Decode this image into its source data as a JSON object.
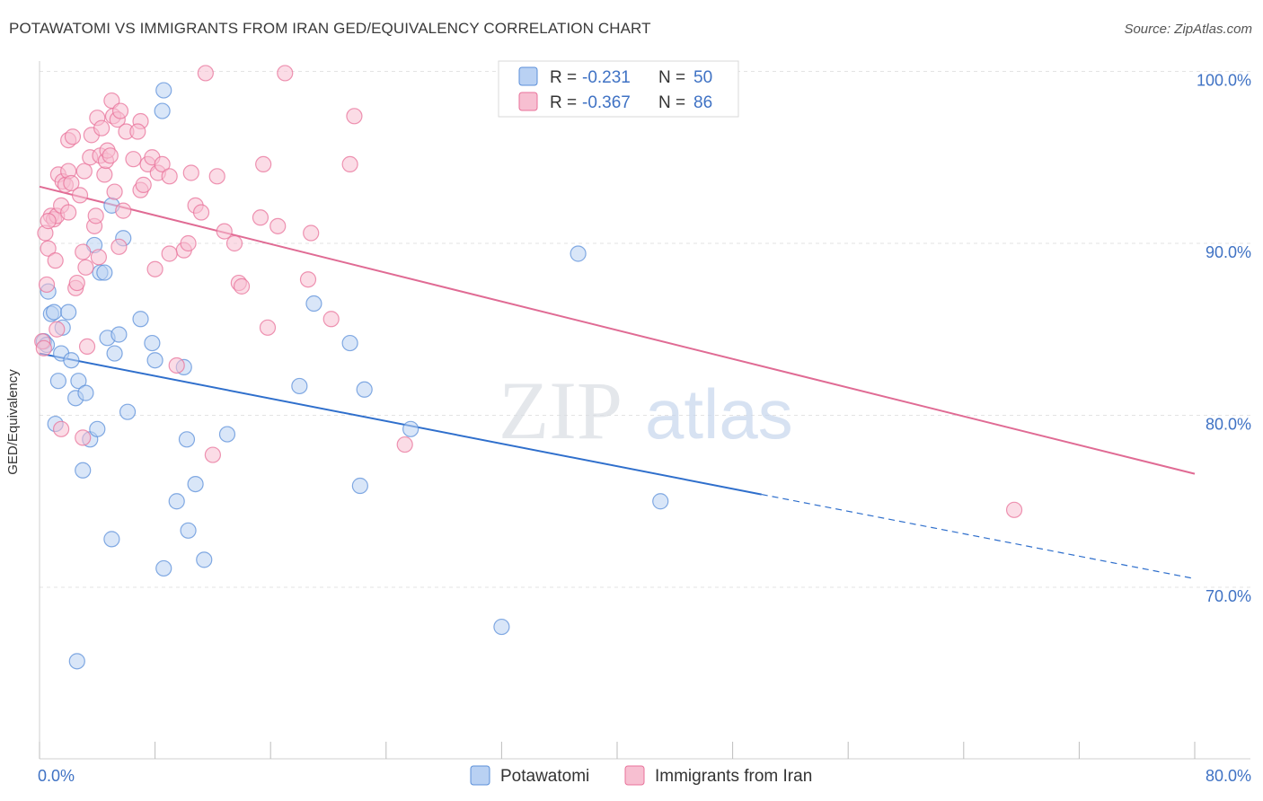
{
  "title": "POTAWATOMI VS IMMIGRANTS FROM IRAN GED/EQUIVALENCY CORRELATION CHART",
  "source": "Source: ZipAtlas.com",
  "watermark": {
    "zip": "ZIP",
    "atlas": "atlas"
  },
  "legend_box": {
    "rows": [
      {
        "r_label": "R =",
        "r_value": "-0.231",
        "n_label": "N =",
        "n_value": "50"
      },
      {
        "r_label": "R =",
        "r_value": "-0.367",
        "n_label": "N =",
        "n_value": "86"
      }
    ]
  },
  "bottom_legend": [
    "Potawatomi",
    "Immigrants from Iran"
  ],
  "chart_data": {
    "type": "scatter",
    "xlabel": "",
    "ylabel": "GED/Equivalency",
    "xlim": [
      0,
      80
    ],
    "ylim": [
      60,
      101
    ],
    "x_tick_labels": [
      {
        "value": 0,
        "label": "0.0%"
      },
      {
        "value": 80,
        "label": "80.0%"
      }
    ],
    "y_tick_labels": [
      {
        "value": 70,
        "label": "70.0%"
      },
      {
        "value": 80,
        "label": "80.0%"
      },
      {
        "value": 90,
        "label": "90.0%"
      },
      {
        "value": 100,
        "label": "100.0%"
      }
    ],
    "grid": true,
    "legend_position": "top-center",
    "colors": {
      "blue": "#5b8fd9",
      "blue_fill": "#b9d1f3",
      "pink": "#e8729a",
      "pink_fill": "#f7bfd1",
      "blue_line": "#2f6fcc",
      "pink_line": "#e06b94"
    },
    "series": [
      {
        "name": "Potawatomi",
        "color": "blue",
        "r": -0.231,
        "n": 50,
        "trend": {
          "x0": 0,
          "y0": 83.6,
          "x1": 50,
          "y1": 75.4,
          "dash_to_x": 80,
          "dash_to_y": 70.5
        },
        "points": [
          [
            0.3,
            84.3
          ],
          [
            0.5,
            84.1
          ],
          [
            0.6,
            87.2
          ],
          [
            0.8,
            85.9
          ],
          [
            1.0,
            86.0
          ],
          [
            1.1,
            79.5
          ],
          [
            1.3,
            82.0
          ],
          [
            1.5,
            83.6
          ],
          [
            1.6,
            85.1
          ],
          [
            2.0,
            86.0
          ],
          [
            2.2,
            83.2
          ],
          [
            2.5,
            81.0
          ],
          [
            2.7,
            82.0
          ],
          [
            3.0,
            76.8
          ],
          [
            3.2,
            81.3
          ],
          [
            3.5,
            78.6
          ],
          [
            3.8,
            89.9
          ],
          [
            4.0,
            79.2
          ],
          [
            4.2,
            88.3
          ],
          [
            4.5,
            88.3
          ],
          [
            4.7,
            84.5
          ],
          [
            5.0,
            92.2
          ],
          [
            5.2,
            83.6
          ],
          [
            5.5,
            84.7
          ],
          [
            5.8,
            90.3
          ],
          [
            6.1,
            80.2
          ],
          [
            7.0,
            85.6
          ],
          [
            7.8,
            84.2
          ],
          [
            8.0,
            83.2
          ],
          [
            8.5,
            97.7
          ],
          [
            8.6,
            98.9
          ],
          [
            10.0,
            82.8
          ],
          [
            9.5,
            75.0
          ],
          [
            10.3,
            73.3
          ],
          [
            10.2,
            78.6
          ],
          [
            10.8,
            76.0
          ],
          [
            11.4,
            71.6
          ],
          [
            13.0,
            78.9
          ],
          [
            18.0,
            81.7
          ],
          [
            19.0,
            86.5
          ],
          [
            21.5,
            84.2
          ],
          [
            22.2,
            75.9
          ],
          [
            22.5,
            81.5
          ],
          [
            25.7,
            79.2
          ],
          [
            32.0,
            67.7
          ],
          [
            37.3,
            89.4
          ],
          [
            43.0,
            75.0
          ],
          [
            2.6,
            65.7
          ],
          [
            8.6,
            71.1
          ],
          [
            5.0,
            72.8
          ]
        ]
      },
      {
        "name": "Immigrants from Iran",
        "color": "pink",
        "r": -0.367,
        "n": 86,
        "trend": {
          "x0": 0,
          "y0": 93.3,
          "x1": 80,
          "y1": 76.6
        },
        "points": [
          [
            0.2,
            84.3
          ],
          [
            0.3,
            83.9
          ],
          [
            0.4,
            90.6
          ],
          [
            0.5,
            87.6
          ],
          [
            0.6,
            89.7
          ],
          [
            0.8,
            91.6
          ],
          [
            1.0,
            91.4
          ],
          [
            1.1,
            89.0
          ],
          [
            1.2,
            91.6
          ],
          [
            1.3,
            94.0
          ],
          [
            1.5,
            92.2
          ],
          [
            1.6,
            93.6
          ],
          [
            1.8,
            93.4
          ],
          [
            2.0,
            94.2
          ],
          [
            2.0,
            96.0
          ],
          [
            2.2,
            93.5
          ],
          [
            2.3,
            96.2
          ],
          [
            2.5,
            87.4
          ],
          [
            2.6,
            87.7
          ],
          [
            2.8,
            92.8
          ],
          [
            3.0,
            89.5
          ],
          [
            3.1,
            94.2
          ],
          [
            3.2,
            88.6
          ],
          [
            3.5,
            95.0
          ],
          [
            3.6,
            96.3
          ],
          [
            3.8,
            91.0
          ],
          [
            3.9,
            91.6
          ],
          [
            4.0,
            97.3
          ],
          [
            4.1,
            89.2
          ],
          [
            4.2,
            95.1
          ],
          [
            4.3,
            96.7
          ],
          [
            4.5,
            94.0
          ],
          [
            4.6,
            94.8
          ],
          [
            4.7,
            95.4
          ],
          [
            4.9,
            95.1
          ],
          [
            5.0,
            98.3
          ],
          [
            5.1,
            97.4
          ],
          [
            5.2,
            93.0
          ],
          [
            5.4,
            97.2
          ],
          [
            5.5,
            89.8
          ],
          [
            5.6,
            97.7
          ],
          [
            5.8,
            91.9
          ],
          [
            6.0,
            96.5
          ],
          [
            6.5,
            94.9
          ],
          [
            7.0,
            93.1
          ],
          [
            7.0,
            97.1
          ],
          [
            7.2,
            93.4
          ],
          [
            7.5,
            94.6
          ],
          [
            7.8,
            95.0
          ],
          [
            8.0,
            88.5
          ],
          [
            8.2,
            94.1
          ],
          [
            8.5,
            94.6
          ],
          [
            9.0,
            93.9
          ],
          [
            9.5,
            82.9
          ],
          [
            10.0,
            89.6
          ],
          [
            10.3,
            90.0
          ],
          [
            10.5,
            94.1
          ],
          [
            10.8,
            92.2
          ],
          [
            11.2,
            91.8
          ],
          [
            11.5,
            99.9
          ],
          [
            12.0,
            77.7
          ],
          [
            12.3,
            93.9
          ],
          [
            12.8,
            90.7
          ],
          [
            13.5,
            90.0
          ],
          [
            13.8,
            87.7
          ],
          [
            14.0,
            87.5
          ],
          [
            15.3,
            91.5
          ],
          [
            15.5,
            94.6
          ],
          [
            15.8,
            85.1
          ],
          [
            16.5,
            91.0
          ],
          [
            17.0,
            99.9
          ],
          [
            18.6,
            87.9
          ],
          [
            18.8,
            90.6
          ],
          [
            20.2,
            85.6
          ],
          [
            21.5,
            94.6
          ],
          [
            21.8,
            97.4
          ],
          [
            25.3,
            78.3
          ],
          [
            67.5,
            74.5
          ],
          [
            1.5,
            79.2
          ],
          [
            3.0,
            78.7
          ],
          [
            0.6,
            91.3
          ],
          [
            1.2,
            85.0
          ],
          [
            2.0,
            91.8
          ],
          [
            3.3,
            84.0
          ],
          [
            6.8,
            96.5
          ],
          [
            9.0,
            89.4
          ]
        ]
      }
    ]
  }
}
